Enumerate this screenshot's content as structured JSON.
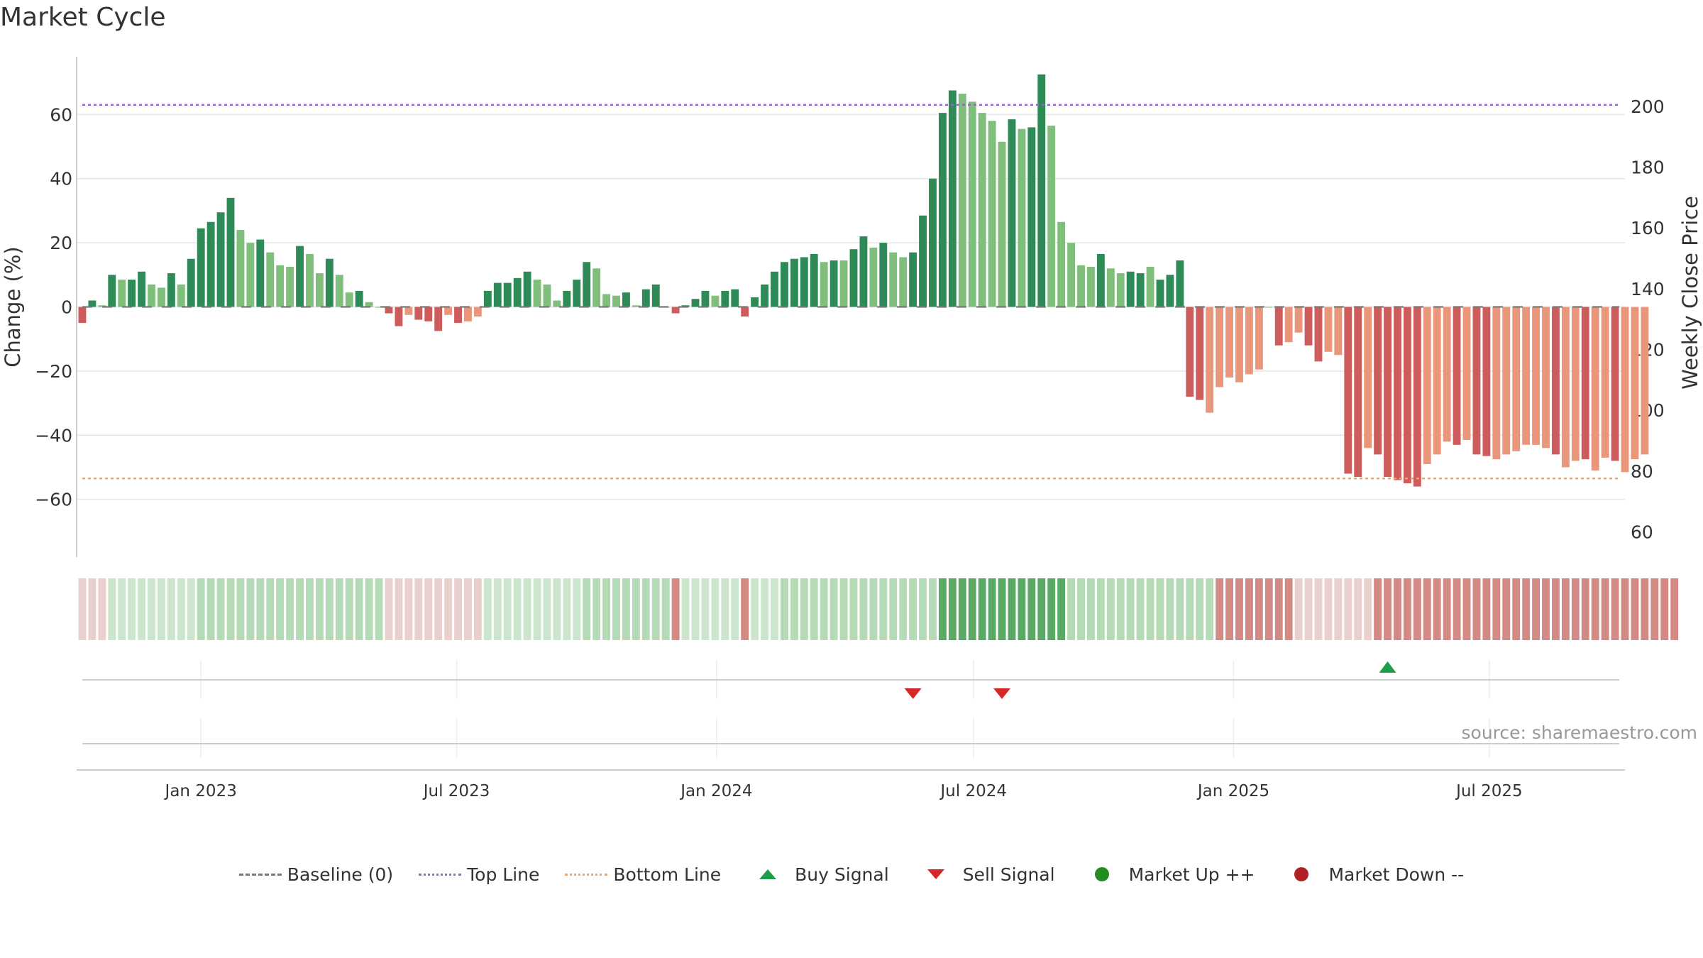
{
  "title": "Market Cycle",
  "source": "source: sharemaestro.com",
  "colors": {
    "up_strong": "#2e8b57",
    "up_light": "#7fbf7b",
    "down_strong": "#cd5c5c",
    "down_light": "#e9967a",
    "top_line": "#9966cc",
    "bottom_line": "#f4a460",
    "baseline": "#777777",
    "buy": "#1e9e4a",
    "sell": "#d62728",
    "market_up": "#228b22",
    "market_down": "#b22222"
  },
  "legend": [
    {
      "label": "Baseline (0)",
      "symbol": "dash",
      "color": "#777777"
    },
    {
      "label": "Top Line",
      "symbol": "dot",
      "color": "#9966cc"
    },
    {
      "label": "Bottom Line",
      "symbol": "dot",
      "color": "#f4a460"
    },
    {
      "label": "Buy Signal",
      "symbol": "triangle-up",
      "color": "#1e9e4a"
    },
    {
      "label": "Sell Signal",
      "symbol": "triangle-down",
      "color": "#d62728"
    },
    {
      "label": "Market Up ++",
      "symbol": "circle",
      "color": "#228b22"
    },
    {
      "label": "Market Down --",
      "symbol": "circle",
      "color": "#b22222"
    }
  ],
  "chart_data": {
    "type": "bar",
    "ylabel": "Change (%)",
    "y2label": "Weekly Close Price",
    "ylim": [
      -78,
      78
    ],
    "yticks": [
      -60,
      -40,
      -20,
      0,
      20,
      40,
      60
    ],
    "y2lim": [
      51.7,
      216.3
    ],
    "y2ticks": [
      60,
      80,
      100,
      120,
      140,
      160,
      180,
      200
    ],
    "x_start": "2022-10-09",
    "xlim": [
      "2022-10-05",
      "2025-10-05"
    ],
    "xticks": [
      {
        "date": "2023-01-01",
        "label": "Jan 2023"
      },
      {
        "date": "2023-07-01",
        "label": "Jul 2023"
      },
      {
        "date": "2024-01-01",
        "label": "Jan 2024"
      },
      {
        "date": "2024-07-01",
        "label": "Jul 2024"
      },
      {
        "date": "2025-01-01",
        "label": "Jan 2025"
      },
      {
        "date": "2025-07-01",
        "label": "Jul 2025"
      }
    ],
    "top_line": 63,
    "bottom_line": -53.5,
    "baseline": 0,
    "grid": true,
    "legend_position": "bottom",
    "values": [
      -5,
      2,
      0.5,
      10,
      8.5,
      8.5,
      11,
      7,
      6,
      10.5,
      7,
      15,
      24.5,
      26.5,
      29.5,
      34,
      24,
      20,
      21,
      17,
      13,
      12.5,
      19,
      16.5,
      10.5,
      15,
      10,
      4.5,
      5,
      1.5,
      0,
      -2,
      -6,
      -2.5,
      -4,
      -4.5,
      -7.5,
      -2.5,
      -5,
      -4.5,
      -3,
      5,
      7.5,
      7.5,
      9,
      11,
      8.5,
      7,
      2,
      5,
      8.5,
      14,
      12,
      4,
      3.5,
      4.5,
      0.5,
      5.5,
      7,
      0,
      -2,
      0.5,
      2.5,
      5,
      3.5,
      5,
      5.5,
      -3,
      3,
      7,
      11,
      14,
      15,
      15.5,
      16.5,
      14,
      14.5,
      14.5,
      18,
      22,
      18.5,
      20,
      17,
      15.5,
      17,
      28.5,
      40,
      60.5,
      67.5,
      66.5,
      64,
      60.5,
      58,
      51.5,
      58.5,
      55.5,
      56,
      72.5,
      56.5,
      26.5,
      20,
      13,
      12.5,
      16.5,
      12,
      10.5,
      11,
      10.5,
      12.5,
      8.5,
      10,
      14.5,
      -28,
      -29,
      -33,
      -25,
      -22,
      -23.5,
      -21,
      -19.5,
      0,
      -12,
      -11,
      -8,
      -12,
      -17,
      -14,
      -15,
      -52,
      -53,
      -44,
      -46,
      -53,
      -54,
      -55,
      -56,
      -49,
      -46,
      -42,
      -43,
      -41.5,
      -46,
      -46.5,
      -47.5,
      -46,
      -45,
      -43,
      -43,
      -44,
      -46,
      -50,
      -48,
      -47.5,
      -51,
      -47,
      -48,
      -51.5,
      -47.5,
      -46
    ],
    "strengths": [
      1,
      1,
      0,
      1,
      0,
      1,
      1,
      0,
      0,
      1,
      0,
      1,
      1,
      1,
      1,
      1,
      0,
      0,
      1,
      0,
      0,
      0,
      1,
      0,
      0,
      1,
      0,
      0,
      1,
      0,
      0,
      1,
      1,
      0,
      1,
      1,
      1,
      0,
      1,
      0,
      0,
      1,
      1,
      1,
      1,
      1,
      0,
      0,
      0,
      1,
      1,
      1,
      0,
      0,
      0,
      1,
      0,
      1,
      1,
      0,
      1,
      1,
      1,
      1,
      0,
      1,
      1,
      1,
      1,
      1,
      1,
      1,
      1,
      1,
      1,
      0,
      1,
      0,
      1,
      1,
      0,
      1,
      0,
      0,
      1,
      1,
      1,
      1,
      1,
      0,
      0,
      0,
      0,
      0,
      1,
      0,
      1,
      1,
      0,
      0,
      0,
      0,
      0,
      1,
      0,
      0,
      1,
      1,
      0,
      1,
      1,
      1,
      1,
      1,
      0,
      0,
      0,
      0,
      0,
      0,
      0,
      1,
      0,
      0,
      1,
      1,
      0,
      0,
      1,
      1,
      0,
      1,
      1,
      1,
      1,
      1,
      0,
      0,
      0,
      1,
      0,
      1,
      1,
      0,
      0,
      0,
      0,
      0,
      0,
      1,
      0,
      0,
      1,
      0,
      0,
      1,
      0,
      0
    ],
    "regime_bands": [
      1,
      1,
      1,
      2,
      2,
      2,
      2,
      2,
      2,
      2,
      2,
      2,
      3,
      3,
      3,
      3,
      3,
      3,
      3,
      3,
      3,
      3,
      3,
      3,
      3,
      3,
      3,
      3,
      3,
      3,
      3,
      1,
      1,
      1,
      1,
      1,
      1,
      1,
      1,
      1,
      1,
      2,
      2,
      2,
      2,
      2,
      2,
      2,
      2,
      2,
      2,
      3,
      3,
      3,
      3,
      3,
      3,
      3,
      3,
      3,
      0,
      2,
      2,
      2,
      2,
      2,
      2,
      0,
      2,
      2,
      2,
      3,
      3,
      3,
      3,
      3,
      3,
      3,
      3,
      3,
      3,
      3,
      3,
      3,
      3,
      3,
      3,
      4,
      4,
      4,
      4,
      4,
      4,
      4,
      4,
      4,
      4,
      4,
      4,
      4,
      3,
      3,
      3,
      3,
      3,
      3,
      3,
      3,
      3,
      3,
      3,
      3,
      3,
      3,
      3,
      0,
      0,
      0,
      0,
      0,
      0,
      0,
      0,
      1,
      1,
      1,
      1,
      1,
      1,
      1,
      1,
      0,
      0,
      0,
      0,
      0,
      0,
      0,
      0,
      0,
      0,
      0,
      0,
      0,
      0,
      0,
      0,
      0,
      0,
      0,
      0,
      0,
      0,
      0,
      0,
      0,
      0,
      0,
      0,
      0,
      0,
      0
    ],
    "band_colors": [
      "#d38a84",
      "#e9cfcd",
      "#cce6cd",
      "#b4dbb6",
      "#5aaa66"
    ],
    "buy_signals": [
      "2025-04-20"
    ],
    "sell_signals": [
      "2024-05-19",
      "2024-07-21"
    ]
  }
}
